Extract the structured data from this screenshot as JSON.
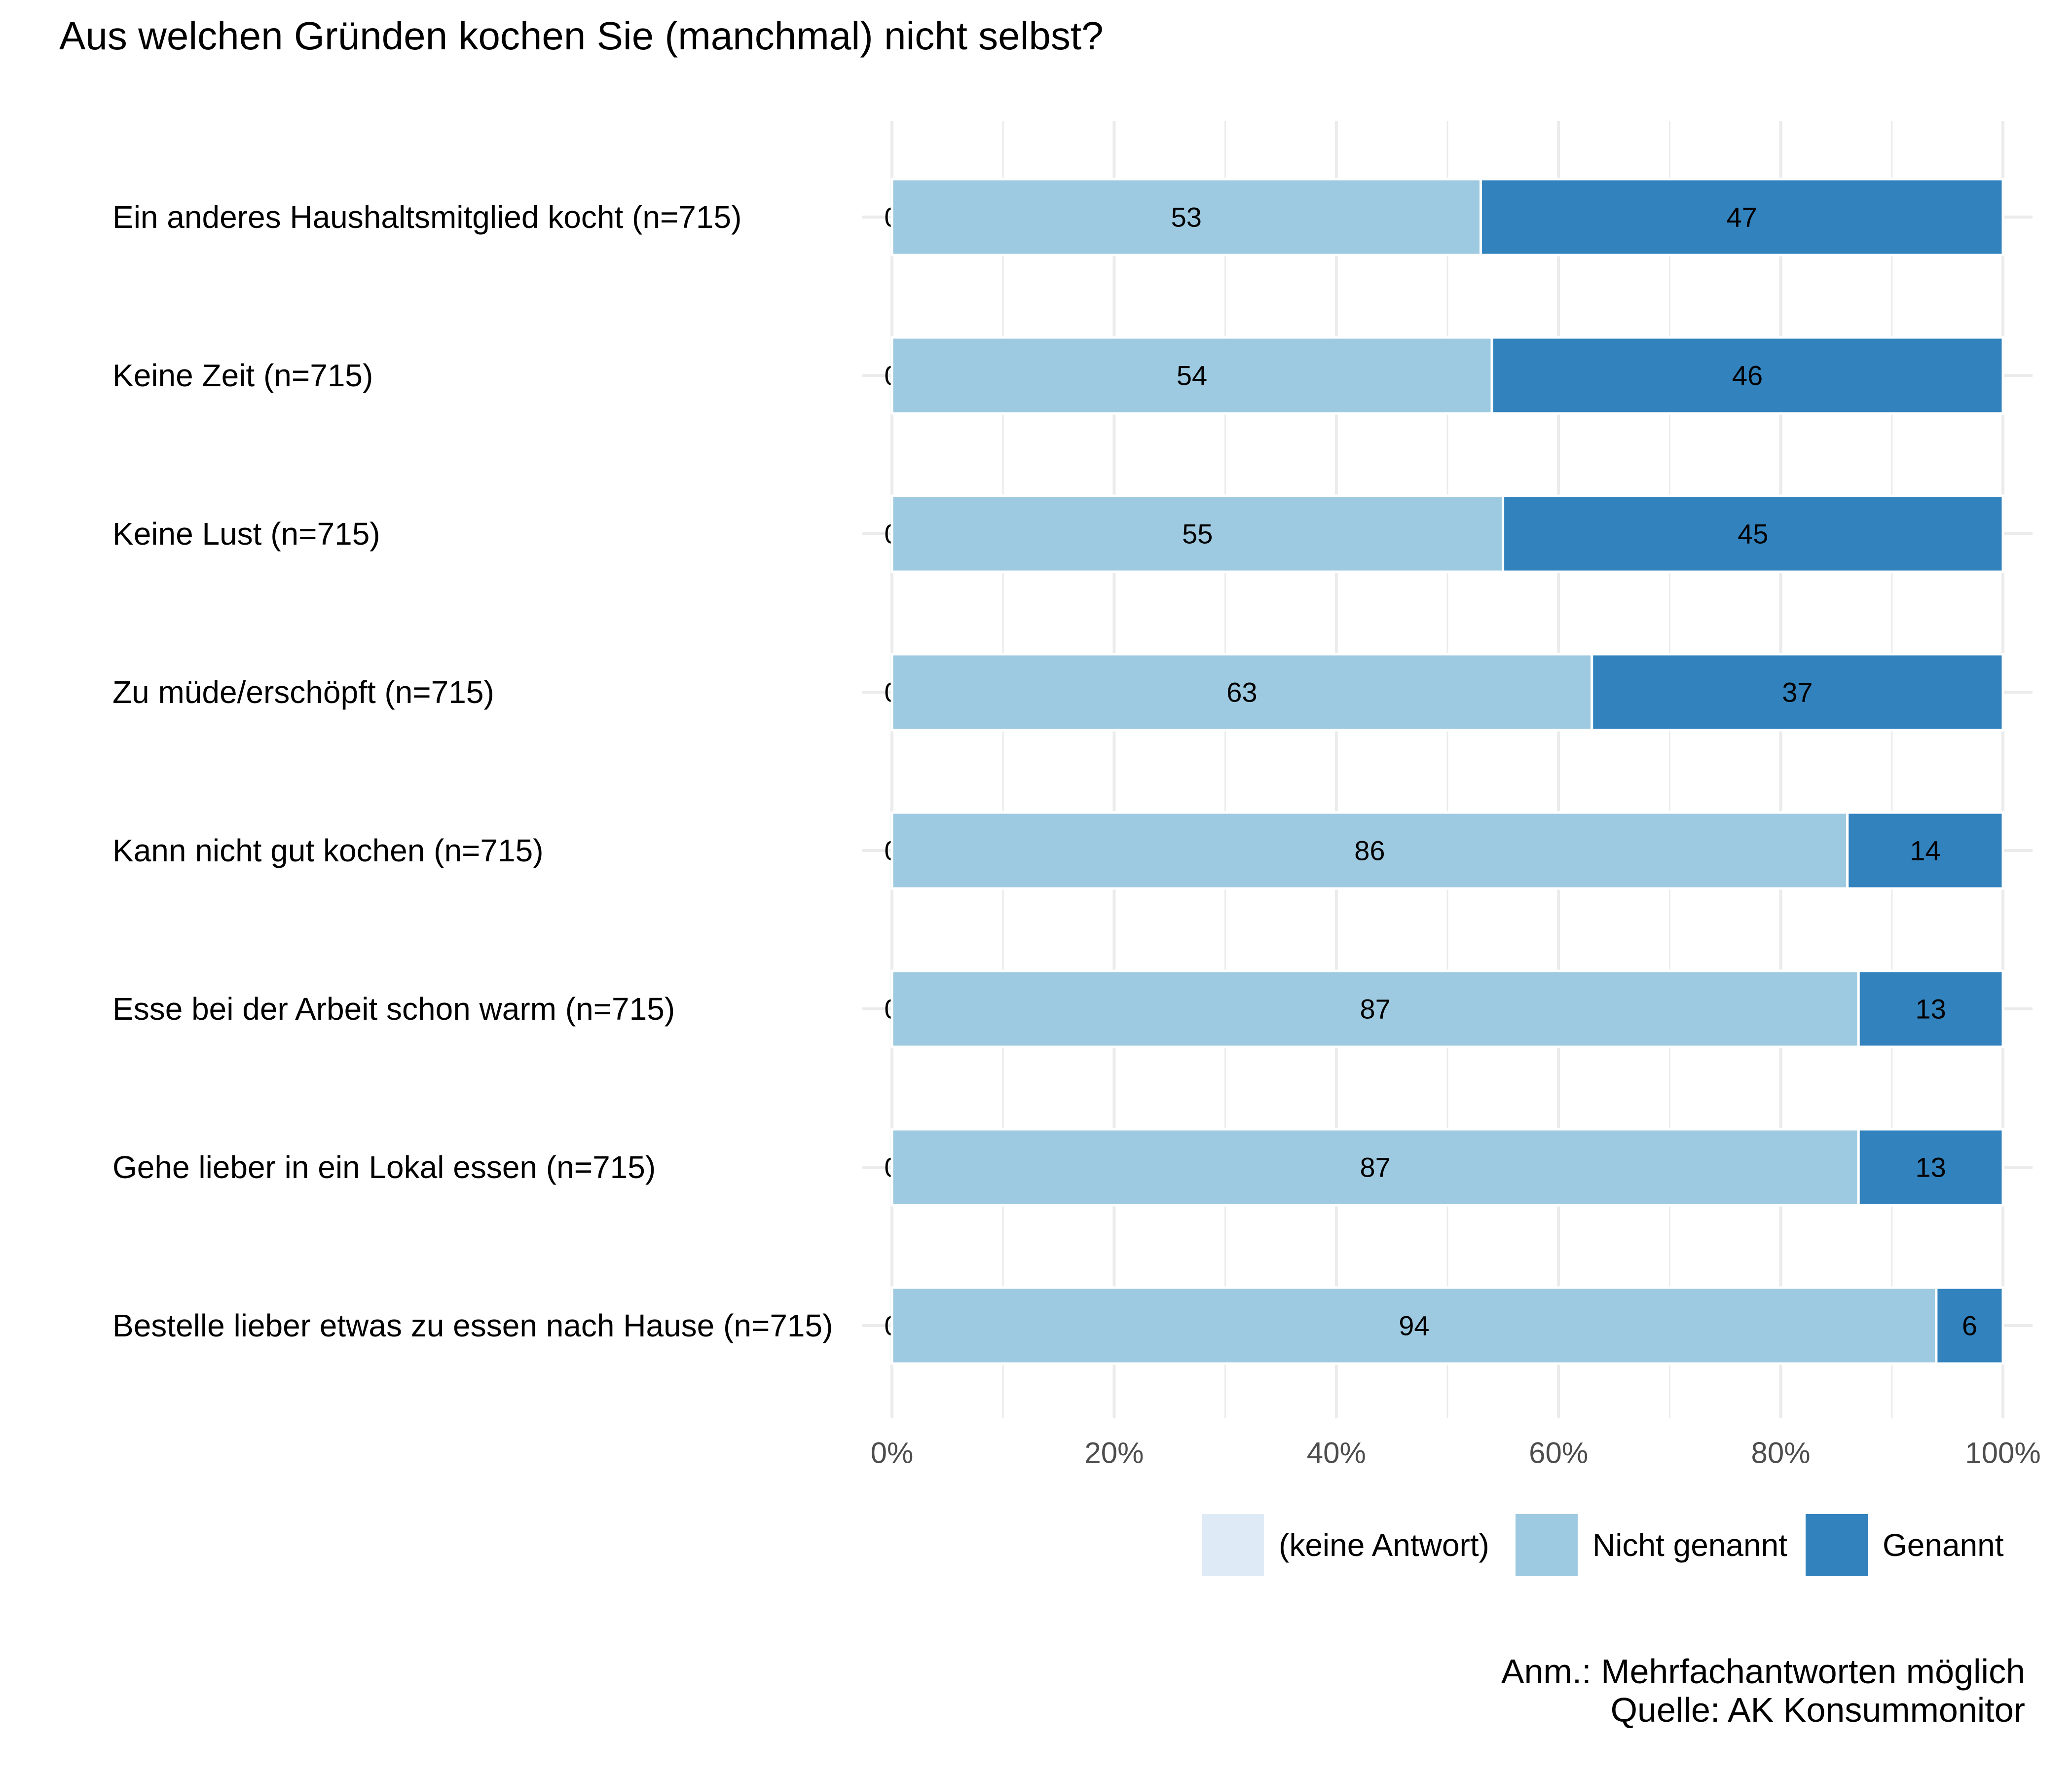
{
  "chart_data": {
    "type": "bar",
    "orientation": "horizontal",
    "stacked": true,
    "title": "Aus welchen Gründen kochen Sie (manchmal) nicht selbst?",
    "xlabel": "",
    "ylabel": "",
    "xlim": [
      0,
      100
    ],
    "x_ticks": [
      "0%",
      "20%",
      "40%",
      "60%",
      "80%",
      "100%"
    ],
    "x_tick_values": [
      0,
      20,
      40,
      60,
      80,
      100
    ],
    "grid": true,
    "legend_position": "bottom-right",
    "categories": [
      "Ein anderes Haushaltsmitglied kocht (n=715)",
      "Keine Zeit (n=715)",
      "Keine Lust (n=715)",
      "Zu müde/erschöpft (n=715)",
      "Kann nicht gut kochen (n=715)",
      "Esse bei der Arbeit schon warm (n=715)",
      "Gehe lieber in ein Lokal essen (n=715)",
      "Bestelle lieber etwas zu essen nach Hause (n=715)"
    ],
    "series": [
      {
        "name": "(keine Antwort)",
        "color": "#deebf7",
        "values": [
          0,
          0,
          0,
          0,
          0,
          0,
          0,
          0
        ]
      },
      {
        "name": "Nicht genannt",
        "color": "#9ecae1",
        "values": [
          53,
          54,
          55,
          63,
          86,
          87,
          87,
          94
        ]
      },
      {
        "name": "Genannt",
        "color": "#3182bd",
        "values": [
          47,
          46,
          45,
          37,
          14,
          13,
          13,
          6
        ]
      }
    ],
    "notes": [
      "Anm.: Mehrfachantworten möglich",
      "Quelle: AK Konsummonitor"
    ]
  }
}
